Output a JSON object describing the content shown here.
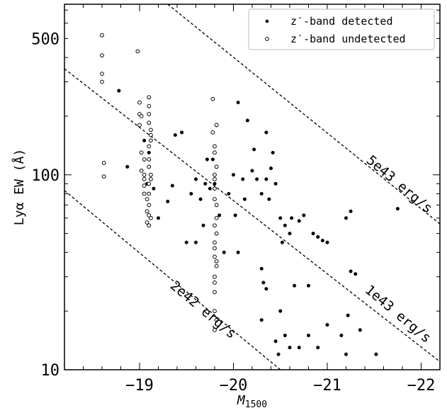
{
  "chart_data": {
    "type": "scatter",
    "xlabel": "M_1500",
    "ylabel": "Lyα EW (Å)",
    "xlim": [
      -18.2,
      -22.2
    ],
    "ylim": [
      10,
      750
    ],
    "y_scale": "log",
    "x_ticks": [
      {
        "value": -19,
        "label": "−19"
      },
      {
        "value": -20,
        "label": "−20"
      },
      {
        "value": -21,
        "label": "−21"
      },
      {
        "value": -22,
        "label": "−22"
      }
    ],
    "y_ticks": [
      {
        "value": 10,
        "label": "10"
      },
      {
        "value": 100,
        "label": "100"
      },
      {
        "value": 500,
        "label": "500"
      }
    ],
    "legend": {
      "position": "top-right",
      "entries": [
        "z′-band detected",
        "z′-band undetected"
      ]
    },
    "reference_lines": [
      {
        "label": "5e43 erg/s",
        "points": [
          [
            -19.3,
            750
          ],
          [
            -22.2,
            56
          ]
        ]
      },
      {
        "label": "1e43 erg/s",
        "points": [
          [
            -18.2,
            350
          ],
          [
            -22.2,
            11
          ]
        ]
      },
      {
        "label": "2e42 erg/s",
        "points": [
          [
            -18.2,
            83
          ],
          [
            -20.5,
            10
          ]
        ]
      }
    ],
    "series": [
      {
        "name": "z′-band detected",
        "marker": "filled",
        "points": [
          [
            -18.78,
            270
          ],
          [
            -18.87,
            110
          ],
          [
            -19.05,
            150
          ],
          [
            -19.1,
            130
          ],
          [
            -19.08,
            90
          ],
          [
            -19.1,
            120
          ],
          [
            -19.12,
            100
          ],
          [
            -19.15,
            85
          ],
          [
            -19.2,
            60
          ],
          [
            -19.3,
            73
          ],
          [
            -19.35,
            88
          ],
          [
            -19.38,
            160
          ],
          [
            -19.45,
            165
          ],
          [
            -19.5,
            45
          ],
          [
            -19.55,
            80
          ],
          [
            -19.6,
            95
          ],
          [
            -19.6,
            45
          ],
          [
            -19.65,
            75
          ],
          [
            -19.68,
            55
          ],
          [
            -19.7,
            90
          ],
          [
            -19.72,
            120
          ],
          [
            -19.75,
            85
          ],
          [
            -19.78,
            120
          ],
          [
            -19.8,
            90
          ],
          [
            -19.82,
            70
          ],
          [
            -19.85,
            62
          ],
          [
            -19.9,
            40
          ],
          [
            -19.95,
            80
          ],
          [
            -20.0,
            100
          ],
          [
            -20.02,
            62
          ],
          [
            -20.05,
            40
          ],
          [
            -20.1,
            95
          ],
          [
            -20.12,
            75
          ],
          [
            -20.2,
            105
          ],
          [
            -20.25,
            95
          ],
          [
            -20.3,
            80
          ],
          [
            -20.35,
            95
          ],
          [
            -20.38,
            75
          ],
          [
            -20.4,
            108
          ],
          [
            -20.42,
            130
          ],
          [
            -20.45,
            90
          ],
          [
            -20.5,
            60
          ],
          [
            -20.52,
            45
          ],
          [
            -20.55,
            55
          ],
          [
            -20.6,
            50
          ],
          [
            -20.62,
            60
          ],
          [
            -20.7,
            58
          ],
          [
            -20.75,
            62
          ],
          [
            -20.8,
            27
          ],
          [
            -20.85,
            50
          ],
          [
            -20.9,
            48
          ],
          [
            -20.95,
            46
          ],
          [
            -21.0,
            45
          ],
          [
            -20.05,
            235
          ],
          [
            -20.15,
            190
          ],
          [
            -20.35,
            165
          ],
          [
            -20.22,
            135
          ],
          [
            -20.3,
            33
          ],
          [
            -20.32,
            28
          ],
          [
            -20.35,
            26
          ],
          [
            -20.5,
            20
          ],
          [
            -20.55,
            15
          ],
          [
            -20.6,
            13
          ],
          [
            -20.65,
            27
          ],
          [
            -20.7,
            13
          ],
          [
            -20.8,
            15
          ],
          [
            -20.9,
            13
          ],
          [
            -21.0,
            17
          ],
          [
            -21.15,
            15
          ],
          [
            -21.2,
            12
          ],
          [
            -21.22,
            19
          ],
          [
            -21.25,
            32
          ],
          [
            -21.3,
            31
          ],
          [
            -21.35,
            16
          ],
          [
            -21.52,
            12
          ],
          [
            -21.2,
            60
          ],
          [
            -21.25,
            65
          ],
          [
            -21.75,
            67
          ],
          [
            -20.45,
            14
          ],
          [
            -20.48,
            12
          ],
          [
            -20.3,
            18
          ]
        ]
      },
      {
        "name": "z′-band undetected",
        "marker": "open",
        "points": [
          [
            -18.6,
            520
          ],
          [
            -18.6,
            410
          ],
          [
            -18.6,
            330
          ],
          [
            -18.6,
            300
          ],
          [
            -18.62,
            115
          ],
          [
            -18.62,
            98
          ],
          [
            -18.98,
            430
          ],
          [
            -19.0,
            235
          ],
          [
            -19.0,
            205
          ],
          [
            -19.02,
            200
          ],
          [
            -19.05,
            100
          ],
          [
            -19.05,
            88
          ],
          [
            -19.08,
            75
          ],
          [
            -19.08,
            65
          ],
          [
            -19.1,
            250
          ],
          [
            -19.1,
            225
          ],
          [
            -19.1,
            185
          ],
          [
            -19.12,
            170
          ],
          [
            -19.12,
            150
          ],
          [
            -19.1,
            140
          ],
          [
            -19.1,
            110
          ],
          [
            -19.12,
            95
          ],
          [
            -19.1,
            80
          ],
          [
            -19.12,
            60
          ],
          [
            -19.1,
            55
          ],
          [
            -19.78,
            245
          ],
          [
            -19.78,
            165
          ],
          [
            -19.8,
            130
          ],
          [
            -19.8,
            100
          ],
          [
            -19.8,
            85
          ],
          [
            -19.8,
            75
          ],
          [
            -19.82,
            60
          ],
          [
            -19.82,
            50
          ],
          [
            -19.8,
            45
          ],
          [
            -19.8,
            38
          ],
          [
            -19.82,
            34
          ],
          [
            -19.8,
            30
          ],
          [
            -19.8,
            20
          ],
          [
            -19.82,
            18
          ],
          [
            -19.8,
            16
          ],
          [
            -19.0,
            180
          ],
          [
            -19.02,
            130
          ],
          [
            -19.05,
            120
          ],
          [
            -19.02,
            105
          ],
          [
            -19.05,
            95
          ],
          [
            -19.05,
            80
          ],
          [
            -19.1,
            70
          ],
          [
            -19.1,
            62
          ],
          [
            -19.08,
            57
          ],
          [
            -19.1,
            90
          ],
          [
            -19.12,
            100
          ],
          [
            -19.1,
            120
          ],
          [
            -19.12,
            160
          ],
          [
            -19.1,
            205
          ],
          [
            -19.82,
            180
          ],
          [
            -19.8,
            140
          ],
          [
            -19.82,
            110
          ],
          [
            -19.8,
            95
          ],
          [
            -19.82,
            70
          ],
          [
            -19.8,
            55
          ],
          [
            -19.8,
            42
          ],
          [
            -19.82,
            36
          ],
          [
            -19.8,
            28
          ],
          [
            -19.8,
            25
          ]
        ]
      }
    ]
  }
}
